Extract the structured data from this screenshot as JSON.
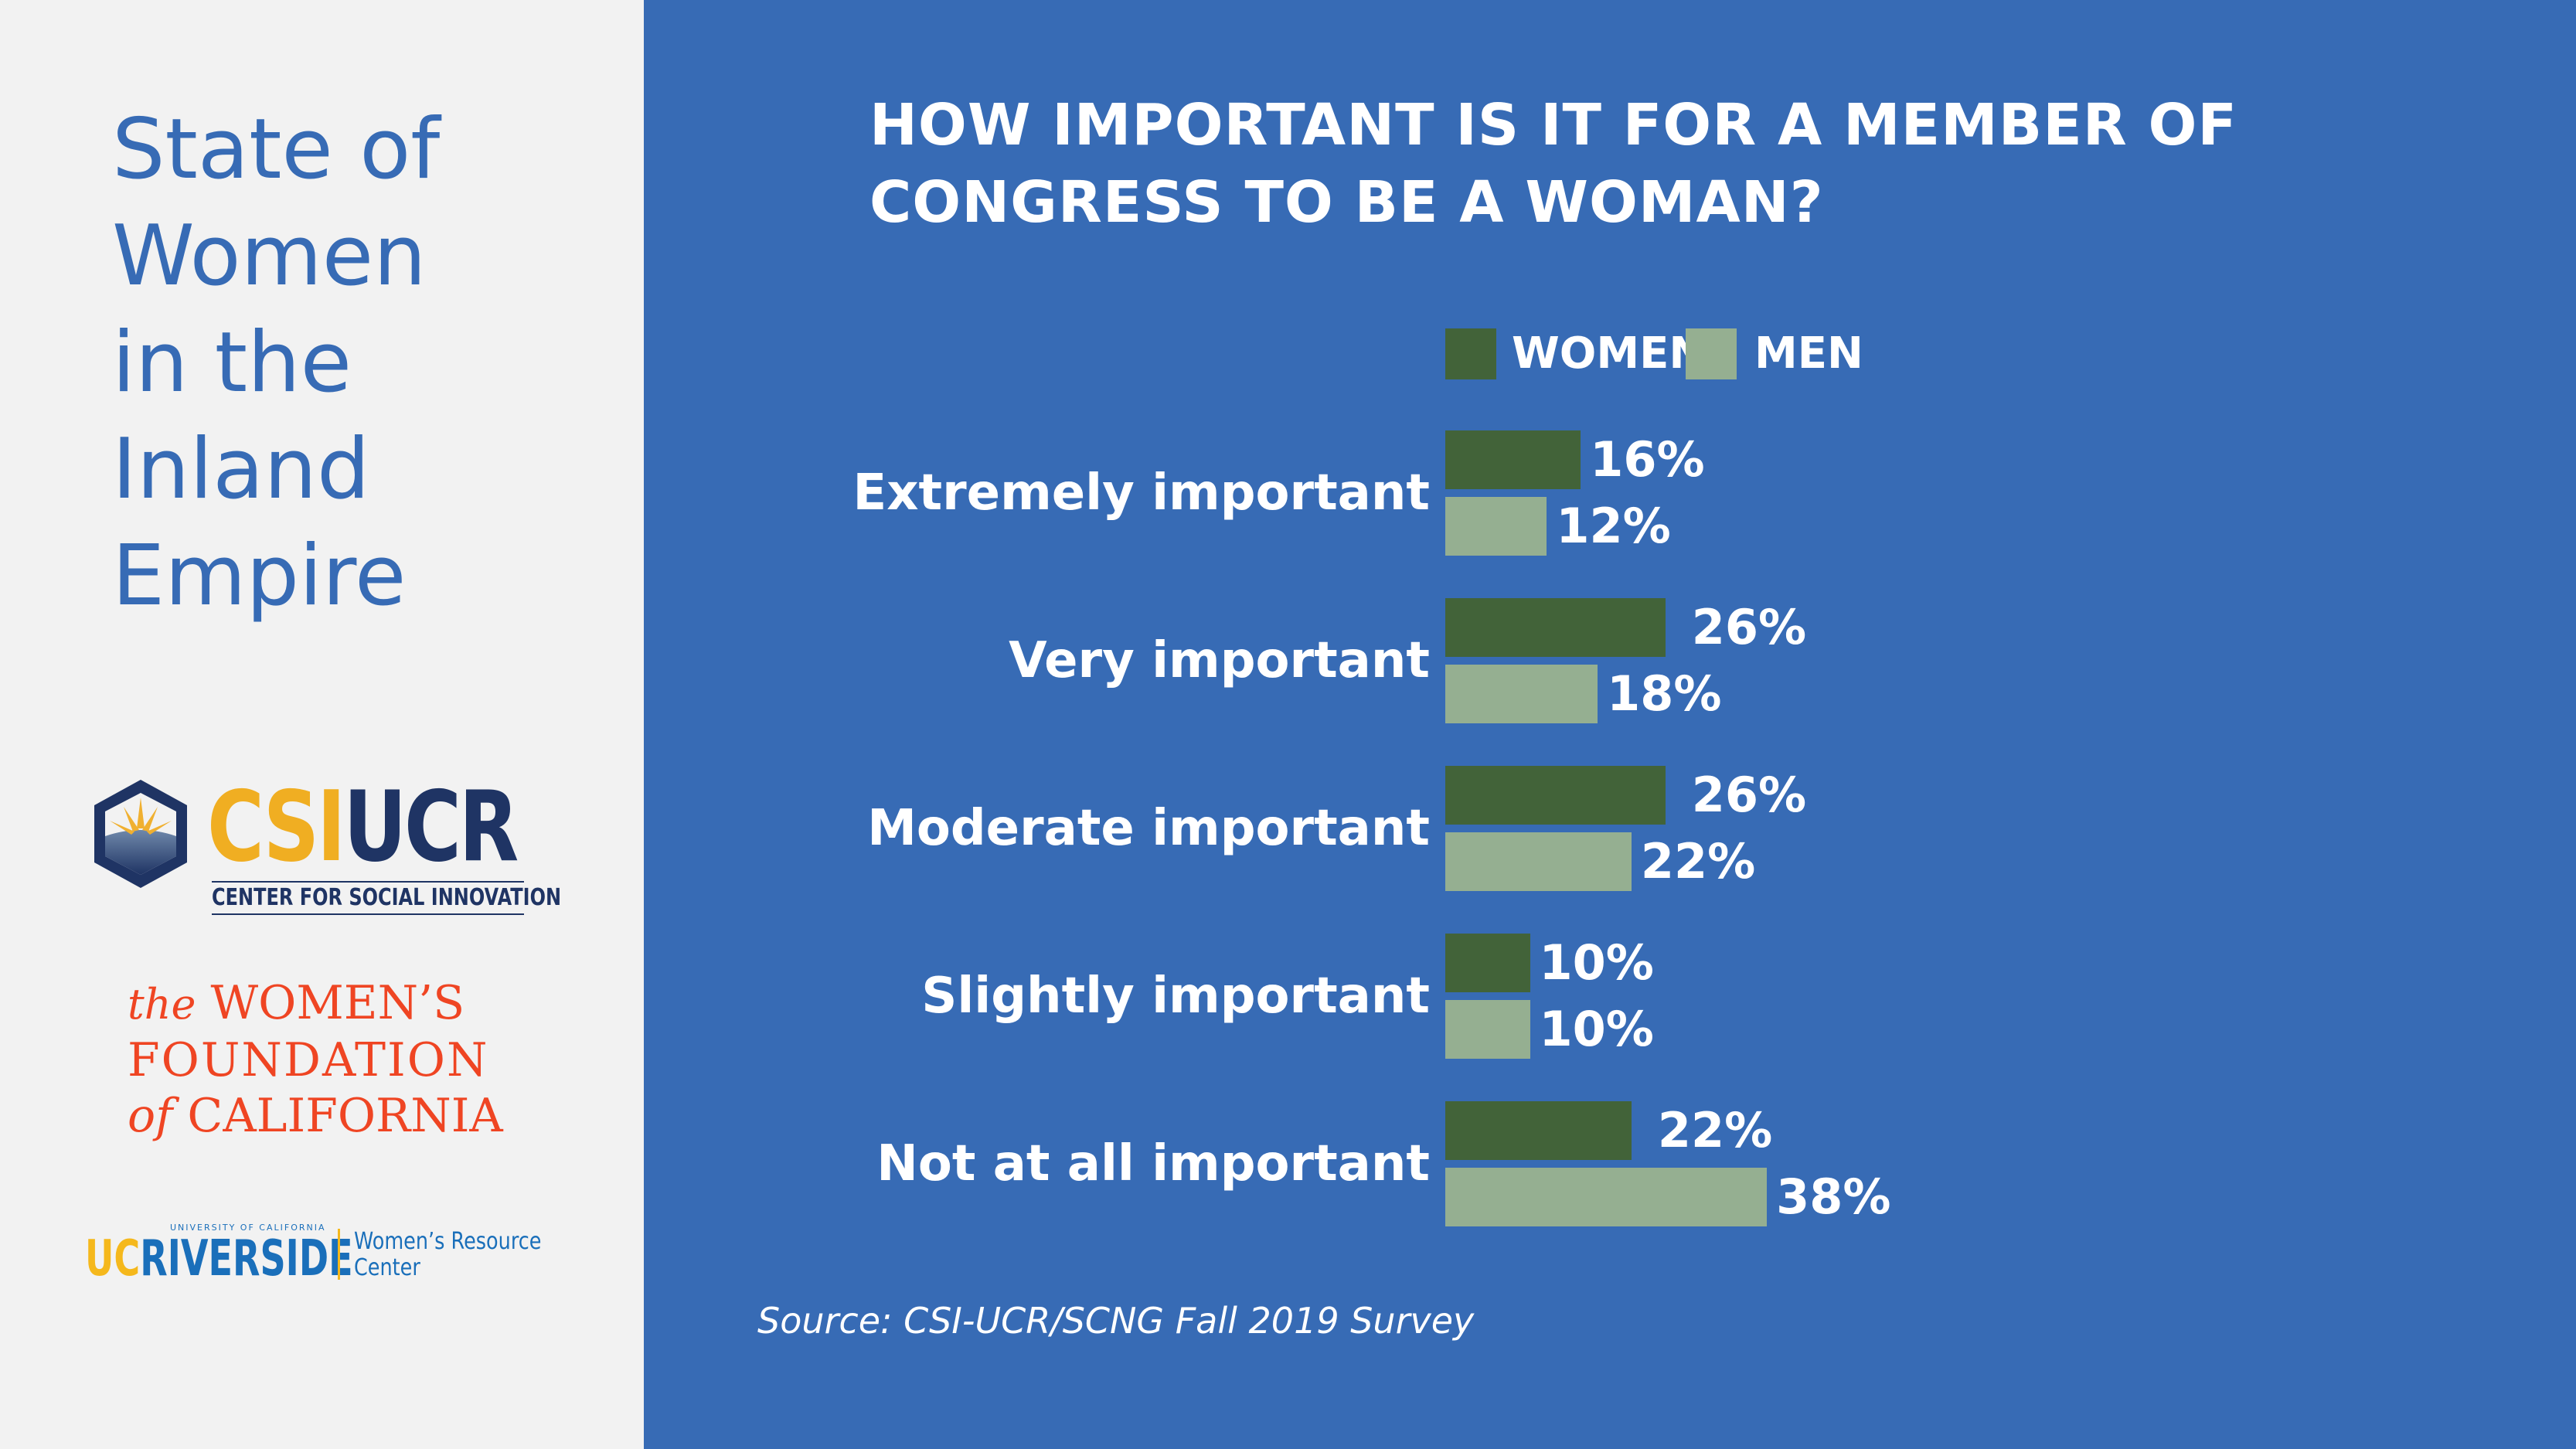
{
  "sidebar": {
    "title_lines": [
      "State of",
      "Women",
      "in the",
      "Inland",
      "Empire"
    ],
    "logos": {
      "csi": {
        "csi": "CSI",
        "ucr": "UCR",
        "sub": "CENTER FOR SOCIAL INNOVATION"
      },
      "wfc": {
        "the": "the",
        "womens": "WOMEN’S",
        "foundation": "FOUNDATION",
        "of": "of",
        "california": "CALIFORNIA"
      },
      "ucr": {
        "uc": "UC",
        "riverside": "RIVERSIDE",
        "univ": "UNIVERSITY OF CALIFORNIA",
        "wrc1": "Women’s Resource",
        "wrc2": "Center"
      }
    }
  },
  "colors": {
    "background": "#376BB5",
    "sidebar": "#F2F2F2",
    "women": "#426339",
    "men": "#95AF91"
  },
  "chart_data": {
    "type": "bar",
    "orientation": "horizontal",
    "title": "HOW IMPORTANT IS IT FOR A MEMBER OF CONGRESS TO BE A WOMAN?",
    "title_lines": [
      "HOW IMPORTANT IS IT FOR A MEMBER OF",
      "CONGRESS TO BE A WOMAN?"
    ],
    "categories": [
      "Extremely important",
      "Very important",
      "Moderate important",
      "Slightly important",
      "Not at all important"
    ],
    "series": [
      {
        "name": "WOMEN",
        "values": [
          16,
          26,
          26,
          10,
          22
        ]
      },
      {
        "name": "MEN",
        "values": [
          12,
          18,
          22,
          10,
          38
        ]
      }
    ],
    "value_suffix": "%",
    "legend": "top",
    "grid": false,
    "xlim": [
      0,
      40
    ],
    "source": "Source: CSI-UCR/SCNG Fall 2019 Survey"
  }
}
